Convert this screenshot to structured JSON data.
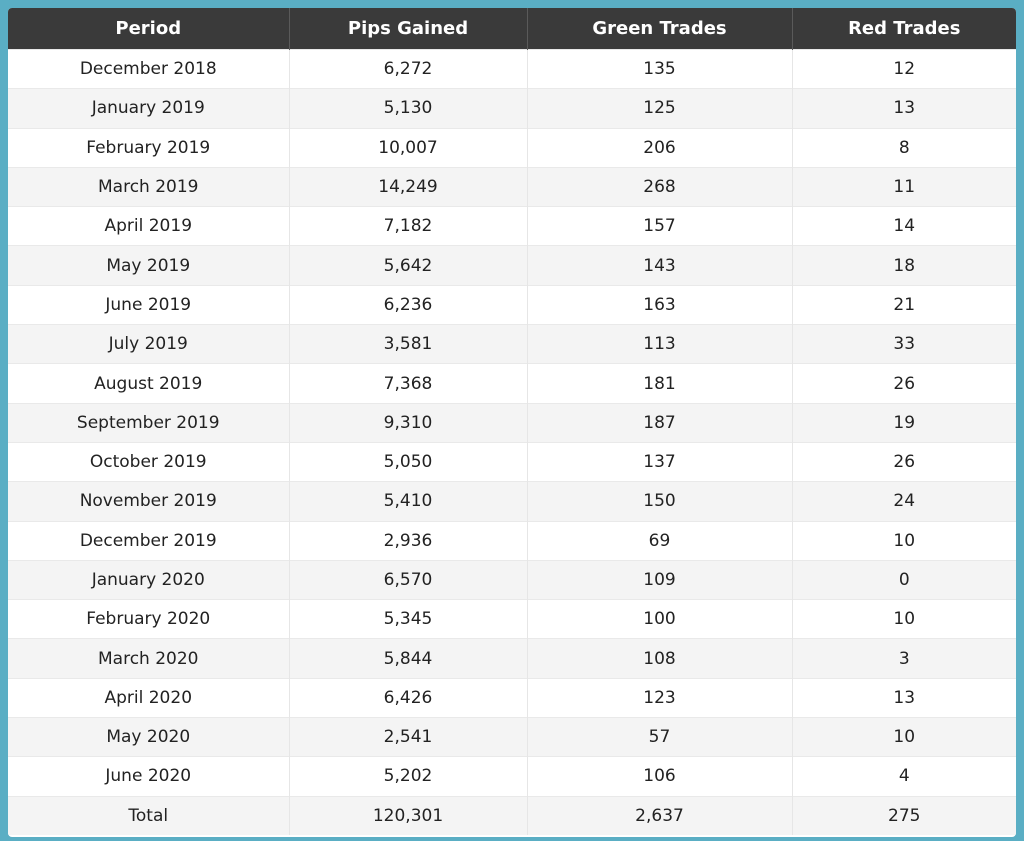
{
  "table": {
    "headers": [
      "Period",
      "Pips Gained",
      "Green Trades",
      "Red Trades"
    ],
    "rows": [
      [
        "December 2018",
        "6,272",
        "135",
        "12"
      ],
      [
        "January 2019",
        "5,130",
        "125",
        "13"
      ],
      [
        "February 2019",
        "10,007",
        "206",
        "8"
      ],
      [
        "March 2019",
        "14,249",
        "268",
        "11"
      ],
      [
        "April 2019",
        "7,182",
        "157",
        "14"
      ],
      [
        "May 2019",
        "5,642",
        "143",
        "18"
      ],
      [
        "June 2019",
        "6,236",
        "163",
        "21"
      ],
      [
        "July 2019",
        "3,581",
        "113",
        "33"
      ],
      [
        "August 2019",
        "7,368",
        "181",
        "26"
      ],
      [
        "September 2019",
        "9,310",
        "187",
        "19"
      ],
      [
        "October 2019",
        "5,050",
        "137",
        "26"
      ],
      [
        "November 2019",
        "5,410",
        "150",
        "24"
      ],
      [
        "December 2019",
        "2,936",
        "69",
        "10"
      ],
      [
        "January 2020",
        "6,570",
        "109",
        "0"
      ],
      [
        "February 2020",
        "5,345",
        "100",
        "10"
      ],
      [
        "March 2020",
        "5,844",
        "108",
        "3"
      ],
      [
        "April 2020",
        "6,426",
        "123",
        "13"
      ],
      [
        "May 2020",
        "2,541",
        "57",
        "10"
      ],
      [
        "June 2020",
        "5,202",
        "106",
        "4"
      ],
      [
        "Total",
        "120,301",
        "2,637",
        "275"
      ]
    ]
  },
  "colors": {
    "frame": "#5aaec4",
    "header_bg": "#3a3a3a",
    "header_text": "#ffffff",
    "row_alt": "#f4f4f4"
  }
}
